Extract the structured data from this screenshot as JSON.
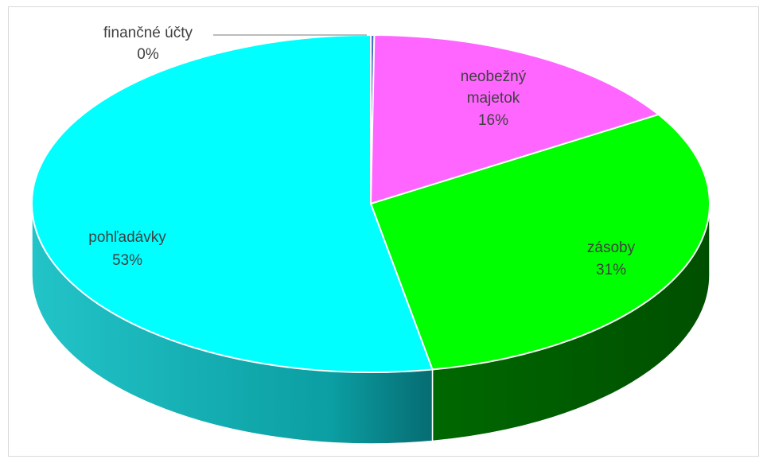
{
  "chart_data": {
    "type": "pie",
    "style": "3d",
    "slices": [
      {
        "label": "finančné účty",
        "value": 0,
        "percent_label": "0%",
        "color": "#4472c4"
      },
      {
        "label": "neobežný majetok",
        "value": 16,
        "percent_label": "16%",
        "color": "#ff66ff"
      },
      {
        "label": "zásoby",
        "value": 31,
        "percent_label": "31%",
        "color": "#00ff00"
      },
      {
        "label": "pohľadávky",
        "value": 53,
        "percent_label": "53%",
        "color": "#00ffff"
      }
    ],
    "side_colors": {
      "neobežný majetok": "#a43ea4",
      "zásoby": "#006600",
      "pohľadávky": "#00b8bb"
    },
    "legend": "none"
  }
}
